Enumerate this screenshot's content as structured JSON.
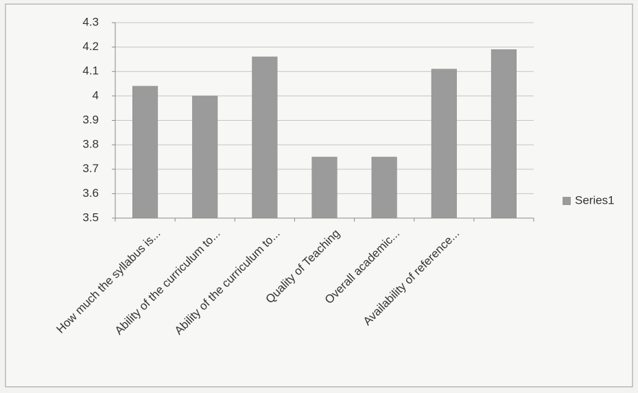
{
  "chart_data": {
    "type": "bar",
    "categories": [
      "How much the syllabus is...",
      "Ability of the curriculum to...",
      "Ability of the curriculum to...",
      "Quality of Teaching",
      "Overall academic...",
      "Availability of reference...",
      null
    ],
    "series": [
      {
        "name": "Series1",
        "color": "#9b9b9b",
        "values": [
          4.04,
          4.0,
          4.16,
          3.75,
          3.75,
          4.11,
          4.19
        ]
      }
    ],
    "ylim": [
      3.5,
      4.3
    ],
    "yticks": [
      3.5,
      3.6,
      3.7,
      3.8,
      3.9,
      4,
      4.1,
      4.2,
      4.3
    ],
    "grid": true,
    "legend": "right"
  }
}
